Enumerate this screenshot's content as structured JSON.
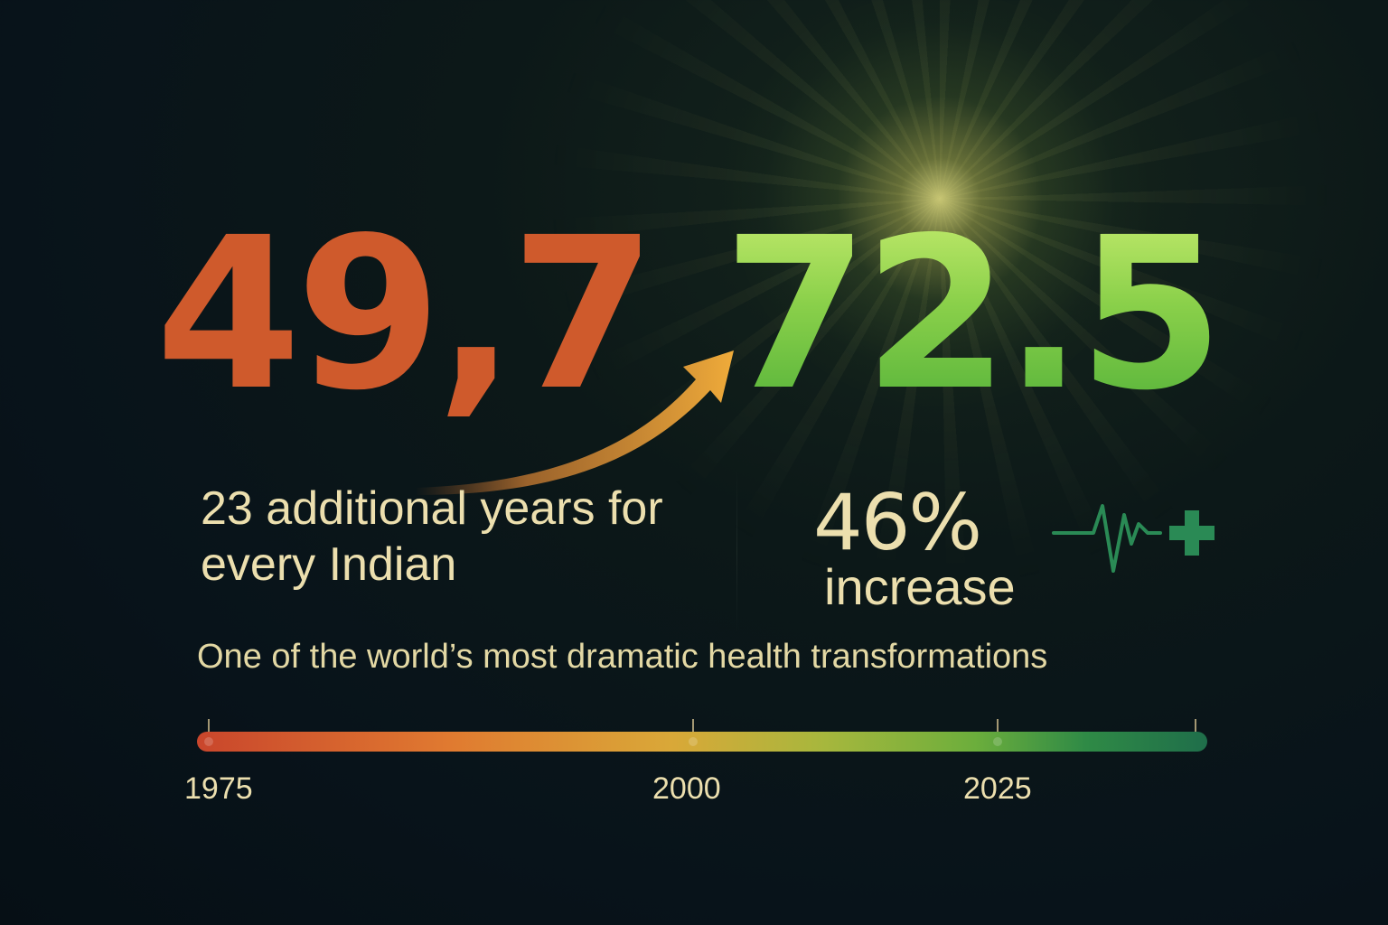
{
  "headline": {
    "before_value": "49,7",
    "after_value": "72.5"
  },
  "gain": {
    "text": "23 additional years for every Indian"
  },
  "increase": {
    "percent": "46%",
    "label": "increase"
  },
  "tagline": "One of the world’s most dramatic health transformations",
  "timeline": {
    "years": [
      "1975",
      "2000",
      "2025"
    ]
  },
  "colors": {
    "before_value": "#cf5a2c",
    "after_value": "#8ad04a",
    "caption_text": "#ecdfae",
    "arrow": "#e8a23a",
    "heartbeat": "#2a8a55",
    "background": "#08131a"
  },
  "icons": [
    "upward-arrow",
    "heartbeat-line-icon",
    "plus-icon",
    "glow-burst"
  ]
}
